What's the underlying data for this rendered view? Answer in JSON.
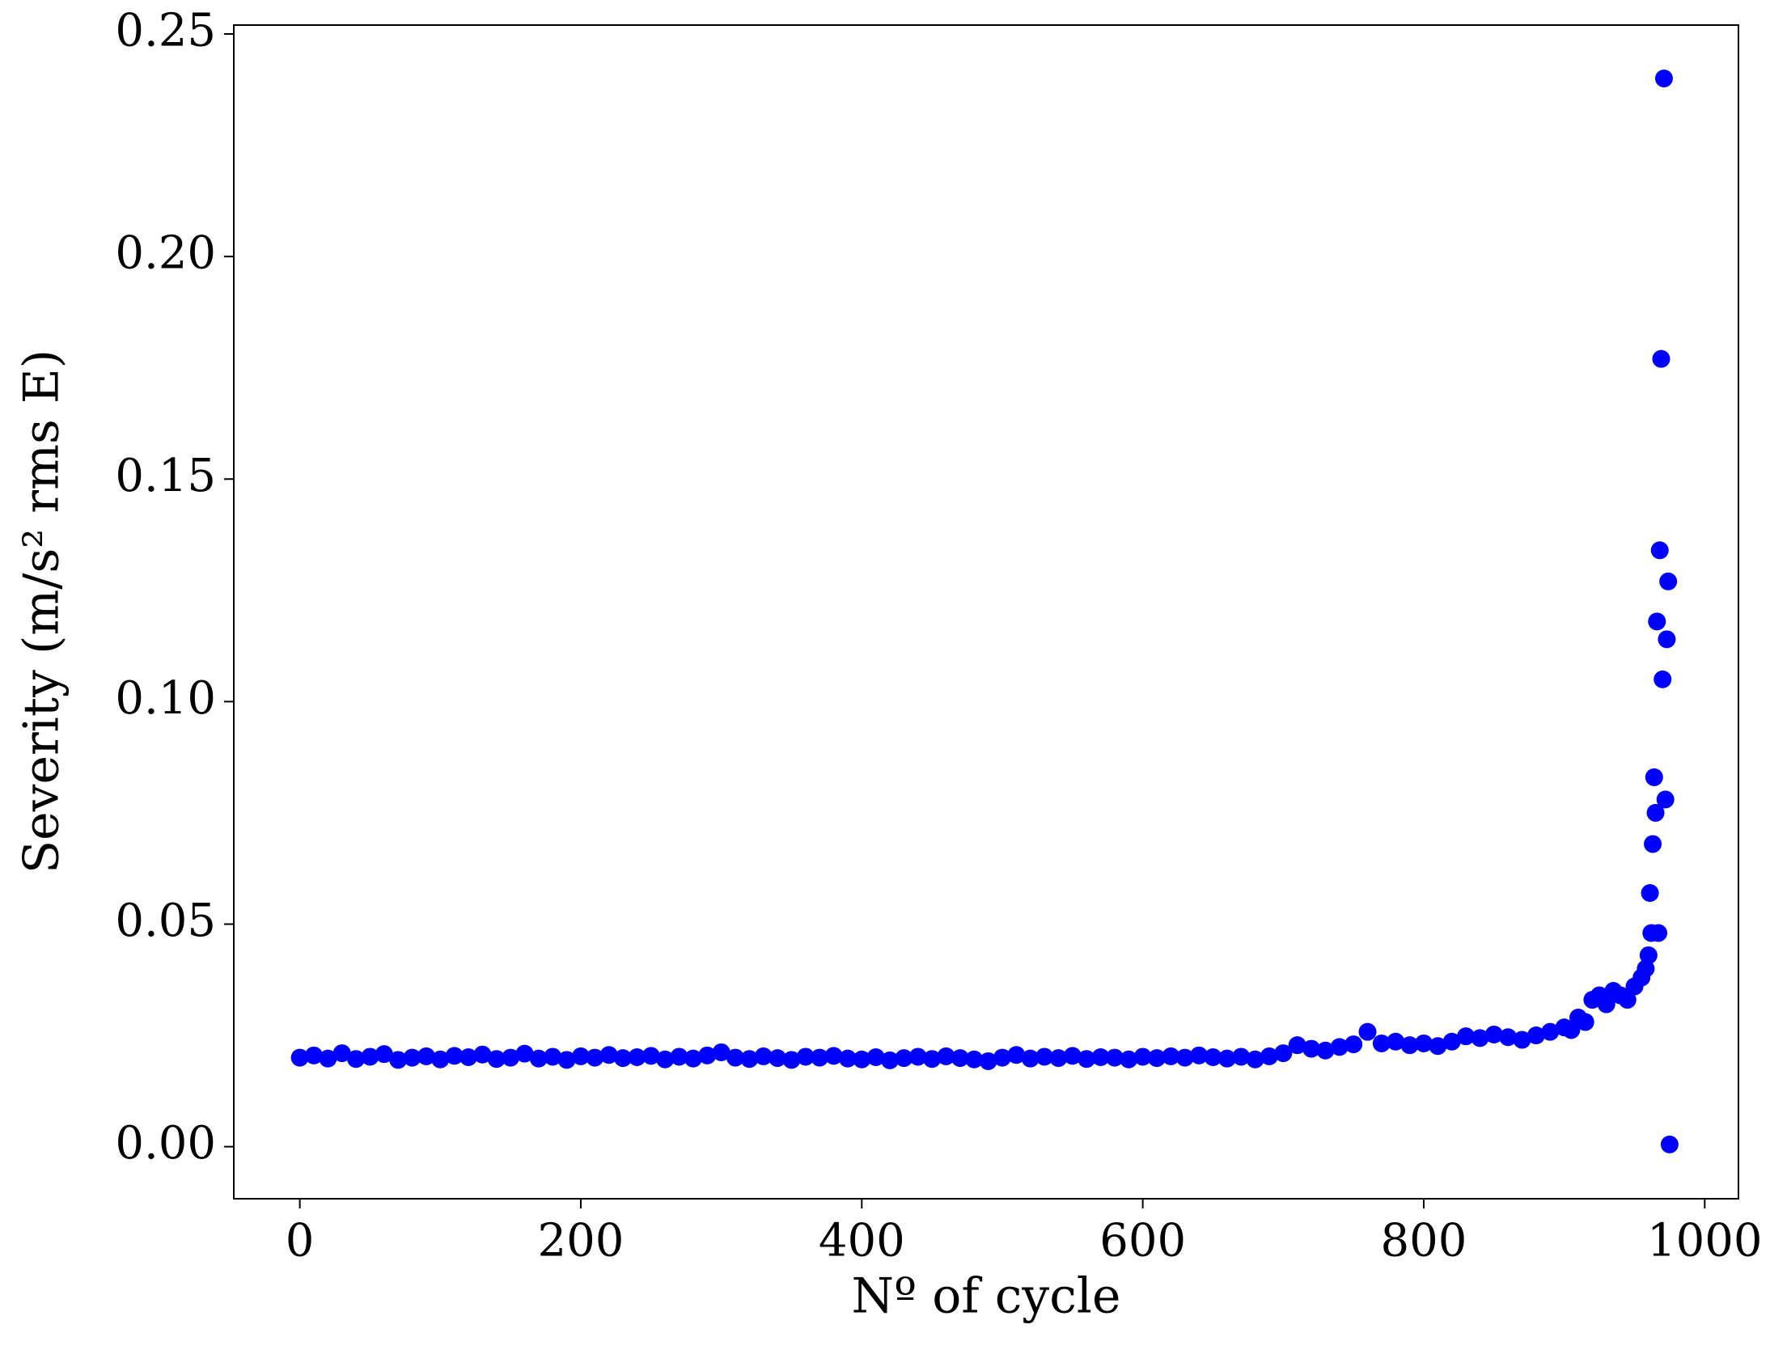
{
  "chart_data": {
    "type": "scatter",
    "xlabel": "Nº of cycle",
    "ylabel": "Severity (m/s² rms E)",
    "xlim": [
      -47,
      1024
    ],
    "ylim": [
      -0.0117,
      0.252
    ],
    "xticks": [
      0,
      200,
      400,
      600,
      800,
      1000
    ],
    "yticks": [
      {
        "value": 0,
        "label": "0.00"
      },
      {
        "value": 0.05,
        "label": "0.05"
      },
      {
        "value": 0.1,
        "label": "0.10"
      },
      {
        "value": 0.15,
        "label": "0.15"
      },
      {
        "value": 0.2,
        "label": "0.20"
      },
      {
        "value": 0.25,
        "label": "0.25"
      }
    ],
    "color": "#0000ff",
    "x": [
      0,
      10,
      20,
      30,
      40,
      50,
      60,
      70,
      80,
      90,
      100,
      110,
      120,
      130,
      140,
      150,
      160,
      170,
      180,
      190,
      200,
      210,
      220,
      230,
      240,
      250,
      260,
      270,
      280,
      290,
      300,
      310,
      320,
      330,
      340,
      350,
      360,
      370,
      380,
      390,
      400,
      410,
      420,
      430,
      440,
      450,
      460,
      470,
      480,
      490,
      500,
      510,
      520,
      530,
      540,
      550,
      560,
      570,
      580,
      590,
      600,
      610,
      620,
      630,
      640,
      650,
      660,
      670,
      680,
      690,
      700,
      710,
      720,
      730,
      740,
      750,
      760,
      770,
      780,
      790,
      800,
      810,
      820,
      830,
      840,
      850,
      860,
      870,
      880,
      890,
      900,
      905,
      910,
      915,
      920,
      925,
      930,
      935,
      940,
      945,
      950,
      955,
      958,
      960,
      961,
      962,
      963,
      964,
      965,
      966,
      967,
      968,
      969,
      970,
      971,
      972,
      973,
      974,
      975
    ],
    "y": [
      0.02,
      0.0205,
      0.0198,
      0.021,
      0.0197,
      0.0202,
      0.0208,
      0.0195,
      0.02,
      0.0203,
      0.0196,
      0.0204,
      0.0201,
      0.0207,
      0.0197,
      0.02,
      0.0209,
      0.0198,
      0.0202,
      0.0195,
      0.0203,
      0.02,
      0.0206,
      0.0199,
      0.0201,
      0.0204,
      0.0196,
      0.0202,
      0.0198,
      0.0205,
      0.0212,
      0.02,
      0.0197,
      0.0203,
      0.0199,
      0.0195,
      0.0202,
      0.02,
      0.0204,
      0.0198,
      0.0196,
      0.0201,
      0.0194,
      0.0199,
      0.0202,
      0.0197,
      0.0203,
      0.0199,
      0.0196,
      0.0192,
      0.02,
      0.0206,
      0.0198,
      0.0202,
      0.0199,
      0.0204,
      0.0197,
      0.0201,
      0.02,
      0.0196,
      0.0202,
      0.0199,
      0.0203,
      0.02,
      0.0205,
      0.0201,
      0.0198,
      0.0202,
      0.0196,
      0.0203,
      0.021,
      0.0228,
      0.022,
      0.0216,
      0.0224,
      0.023,
      0.0258,
      0.0232,
      0.0236,
      0.0228,
      0.0232,
      0.0226,
      0.0236,
      0.0248,
      0.0244,
      0.0252,
      0.0246,
      0.024,
      0.025,
      0.0258,
      0.0268,
      0.0262,
      0.029,
      0.028,
      0.033,
      0.034,
      0.032,
      0.035,
      0.034,
      0.033,
      0.036,
      0.038,
      0.04,
      0.043,
      0.057,
      0.048,
      0.068,
      0.083,
      0.075,
      0.118,
      0.048,
      0.134,
      0.177,
      0.105,
      0.24,
      0.078,
      0.114,
      0.127,
      0.0005
    ]
  }
}
